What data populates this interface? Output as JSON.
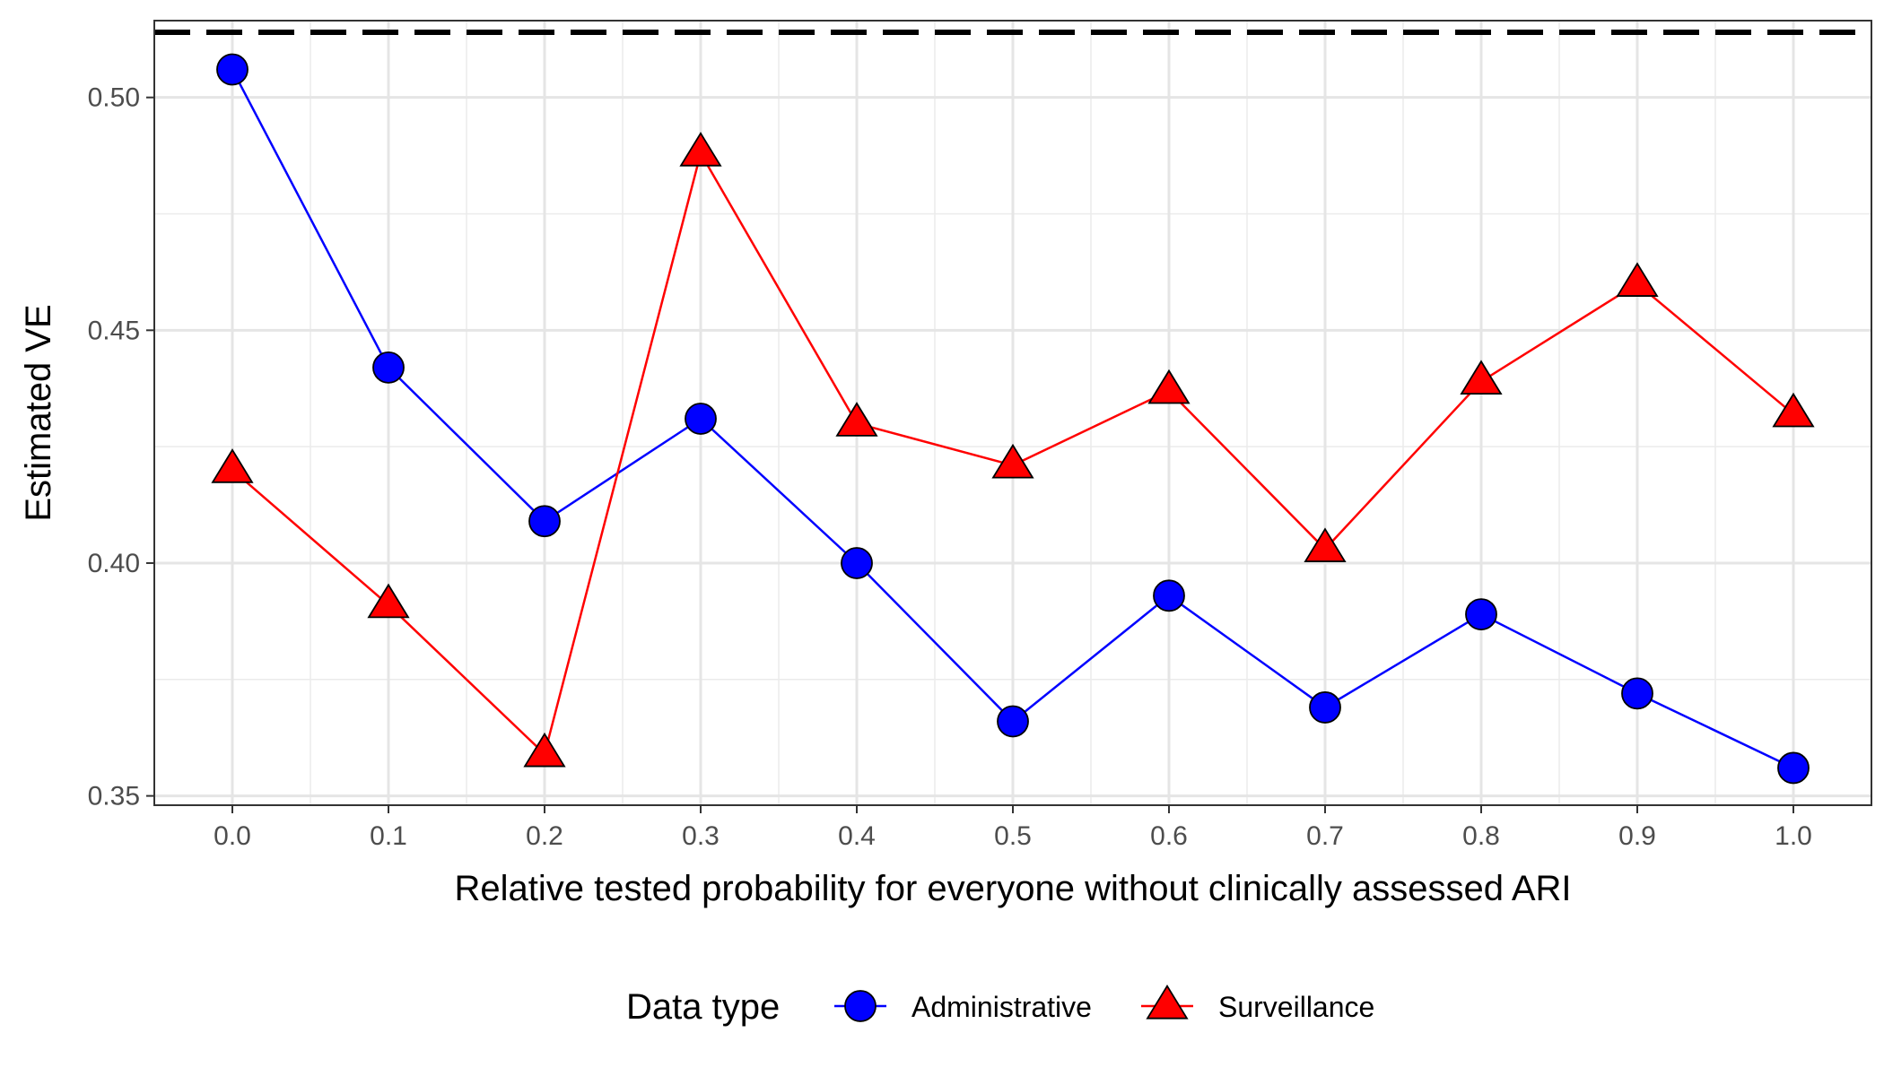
{
  "chart_data": {
    "type": "line",
    "xlabel": "Relative tested probability for everyone without clinically assessed ARI",
    "ylabel": "Estimated VE",
    "x": [
      0.0,
      0.1,
      0.2,
      0.3,
      0.4,
      0.5,
      0.6,
      0.7,
      0.8,
      0.9,
      1.0
    ],
    "x_tick_labels": [
      "0.0",
      "0.1",
      "0.2",
      "0.3",
      "0.4",
      "0.5",
      "0.6",
      "0.7",
      "0.8",
      "0.9",
      "1.0"
    ],
    "y_ticks": [
      0.35,
      0.4,
      0.45,
      0.5
    ],
    "y_tick_labels": [
      "0.35",
      "0.40",
      "0.45",
      "0.50"
    ],
    "xlim": [
      -0.05,
      1.05
    ],
    "ylim": [
      0.348,
      0.5165
    ],
    "grid": true,
    "reference_line": {
      "y": 0.514,
      "style": "dashed",
      "color": "#000000"
    },
    "legend": {
      "title": "Data type",
      "position": "bottom"
    },
    "series": [
      {
        "name": "Administrative",
        "marker": "circle",
        "color": "#0000ff",
        "values": [
          0.506,
          0.442,
          0.409,
          0.431,
          0.4,
          0.366,
          0.393,
          0.369,
          0.389,
          0.372,
          0.356
        ]
      },
      {
        "name": "Surveillance",
        "marker": "triangle",
        "color": "#ff0000",
        "values": [
          0.42,
          0.391,
          0.359,
          0.488,
          0.43,
          0.421,
          0.437,
          0.403,
          0.439,
          0.46,
          0.432
        ]
      }
    ]
  }
}
